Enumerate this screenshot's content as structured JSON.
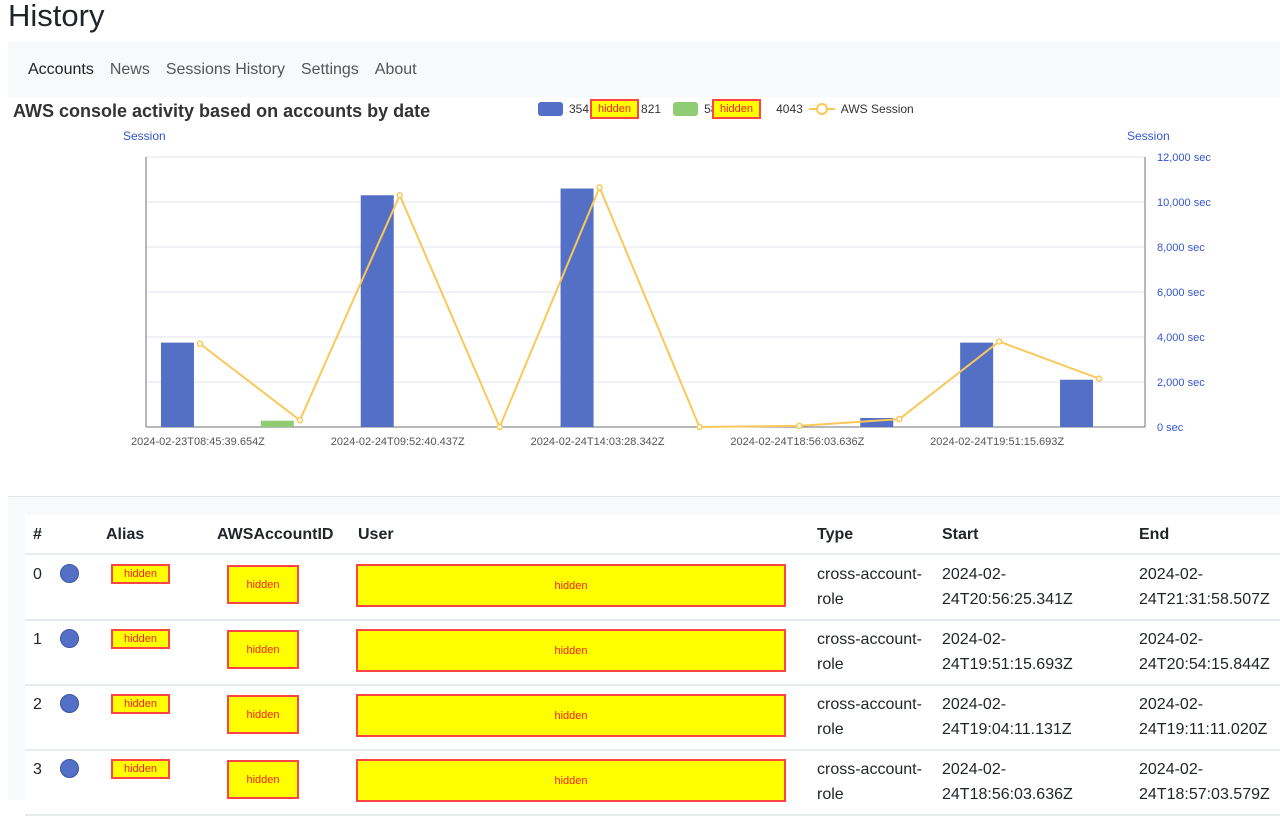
{
  "page_title": "History",
  "nav": [
    "Accounts",
    "News",
    "Sessions History",
    "Settings",
    "About"
  ],
  "chart_data": {
    "type": "bar",
    "title": "AWS console activity based on accounts by date",
    "ylabel_left": "Session",
    "ylabel_right": "Session",
    "y_ticks": [
      "0 sec",
      "2,000 sec",
      "4,000 sec",
      "6,000 sec",
      "8,000 sec",
      "10,000 sec",
      "12,000 sec"
    ],
    "ylim": [
      0,
      12000
    ],
    "categories": [
      "2024-02-23T08:45:39.654Z",
      "",
      "2024-02-24T09:52:40.437Z",
      "",
      "2024-02-24T14:03:28.342Z",
      "",
      "2024-02-24T18:56:03.636Z",
      "",
      "2024-02-24T19:51:15.693Z",
      ""
    ],
    "series": [
      {
        "name": "354…821 (hidden)",
        "type": "bar",
        "color": "#5470c6",
        "values": [
          3750,
          0,
          10300,
          0,
          10600,
          0,
          0,
          400,
          3750,
          2100
        ]
      },
      {
        "name": "582…043 (hidden)",
        "type": "bar",
        "color": "#91cc75",
        "values": [
          0,
          280,
          0,
          0,
          0,
          0,
          0,
          0,
          0,
          0
        ]
      },
      {
        "name": "AWS Session",
        "type": "line",
        "color": "#fac858",
        "values": [
          3700,
          300,
          10300,
          0,
          10650,
          0,
          50,
          350,
          3800,
          2150
        ]
      }
    ],
    "legend": [
      "354",
      "821",
      "582",
      "4043",
      "AWS Session"
    ],
    "legend_placement": "top",
    "grid": true
  },
  "redacted_label": "hidden",
  "table": {
    "headers": [
      "#",
      "Alias",
      "AWSAccountID",
      "User",
      "Type",
      "Start",
      "End"
    ],
    "rows": [
      {
        "n": "0",
        "type": "cross-account-role",
        "start": "2024-02-24T20:56:25.341Z",
        "end": "2024-02-24T21:31:58.507Z"
      },
      {
        "n": "1",
        "type": "cross-account-role",
        "start": "2024-02-24T19:51:15.693Z",
        "end": "2024-02-24T20:54:15.844Z"
      },
      {
        "n": "2",
        "type": "cross-account-role",
        "start": "2024-02-24T19:04:11.131Z",
        "end": "2024-02-24T19:11:11.020Z"
      },
      {
        "n": "3",
        "type": "cross-account-role",
        "start": "2024-02-24T18:56:03.636Z",
        "end": "2024-02-24T18:57:03.579Z"
      }
    ]
  }
}
